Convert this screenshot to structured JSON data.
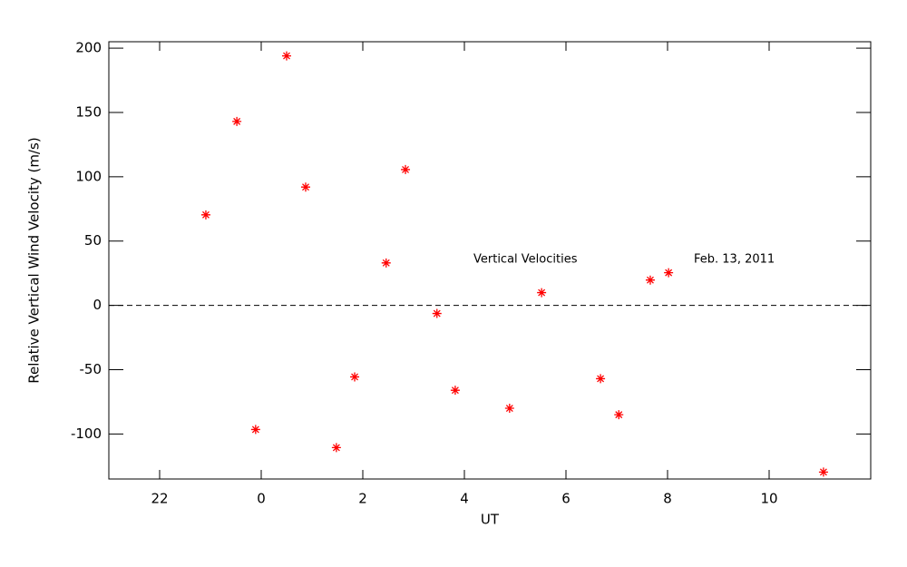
{
  "chart_data": {
    "type": "scatter",
    "xlabel": "UT",
    "ylabel": "Relative Vertical Wind Velocity (m/s)",
    "annotations": [
      "Vertical Velocities",
      "Feb. 13, 2011"
    ],
    "xlim": [
      -3,
      12
    ],
    "ylim": [
      -135,
      205
    ],
    "xticks": [
      {
        "value": -2,
        "label": "22"
      },
      0,
      2,
      4,
      6,
      8,
      10
    ],
    "yticks": [
      -100,
      -50,
      0,
      50,
      100,
      150,
      200
    ],
    "hline": 0,
    "series": [
      {
        "color": "#ff0000",
        "x": [
          -1.09,
          -0.48,
          -0.11,
          0.5,
          0.875,
          1.48,
          1.84,
          2.46,
          2.84,
          3.46,
          3.82,
          4.89,
          5.52,
          6.68,
          7.04,
          7.66,
          8.02,
          11.07
        ],
        "values": [
          70.4,
          143,
          -96.5,
          194,
          92,
          -110.6,
          -55.6,
          33,
          105.6,
          -6.3,
          -66,
          -80,
          9.9,
          -57,
          -85,
          19.7,
          25.4,
          -129.6
        ]
      }
    ]
  }
}
